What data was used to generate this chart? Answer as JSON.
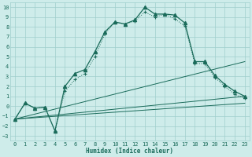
{
  "background_color": "#ceecea",
  "grid_color": "#9fcfcc",
  "line_color": "#1a6b5a",
  "xlim": [
    -0.5,
    23.5
  ],
  "ylim": [
    -3.5,
    10.5
  ],
  "xlabel": "Humidex (Indice chaleur)",
  "xticks": [
    0,
    1,
    2,
    3,
    4,
    5,
    6,
    7,
    8,
    9,
    10,
    11,
    12,
    13,
    14,
    15,
    16,
    17,
    18,
    19,
    20,
    21,
    22,
    23
  ],
  "yticks": [
    -3,
    -2,
    -1,
    0,
    1,
    2,
    3,
    4,
    5,
    6,
    7,
    8,
    9,
    10
  ],
  "curve1_x": [
    0,
    1,
    2,
    3,
    4,
    5,
    6,
    7,
    8,
    9,
    10,
    11,
    12,
    13,
    14,
    15,
    16,
    17,
    18,
    19,
    20,
    21,
    22,
    23
  ],
  "curve1_y": [
    -1.3,
    0.3,
    -0.2,
    -0.1,
    -2.5,
    2.0,
    3.3,
    3.7,
    5.5,
    7.5,
    8.5,
    8.3,
    8.7,
    10.0,
    9.3,
    9.3,
    9.2,
    8.4,
    4.5,
    4.5,
    3.1,
    2.2,
    1.5,
    1.0
  ],
  "curve2_x": [
    0,
    1,
    2,
    3,
    4,
    5,
    6,
    7,
    8,
    9,
    10,
    11,
    12,
    13,
    14,
    15,
    16,
    17,
    18,
    19,
    20,
    21,
    22,
    23
  ],
  "curve2_y": [
    -1.3,
    0.3,
    -0.2,
    -0.1,
    -2.5,
    1.5,
    2.7,
    3.3,
    5.0,
    7.3,
    8.5,
    8.3,
    8.6,
    9.5,
    9.0,
    9.3,
    8.8,
    8.1,
    4.3,
    4.3,
    2.9,
    2.0,
    1.2,
    0.8
  ],
  "trend1_x": [
    0,
    23
  ],
  "trend1_y": [
    -1.3,
    1.0
  ],
  "trend2_x": [
    0,
    23
  ],
  "trend2_y": [
    -1.3,
    4.5
  ],
  "trend3_x": [
    0,
    23
  ],
  "trend3_y": [
    -1.3,
    0.3
  ]
}
